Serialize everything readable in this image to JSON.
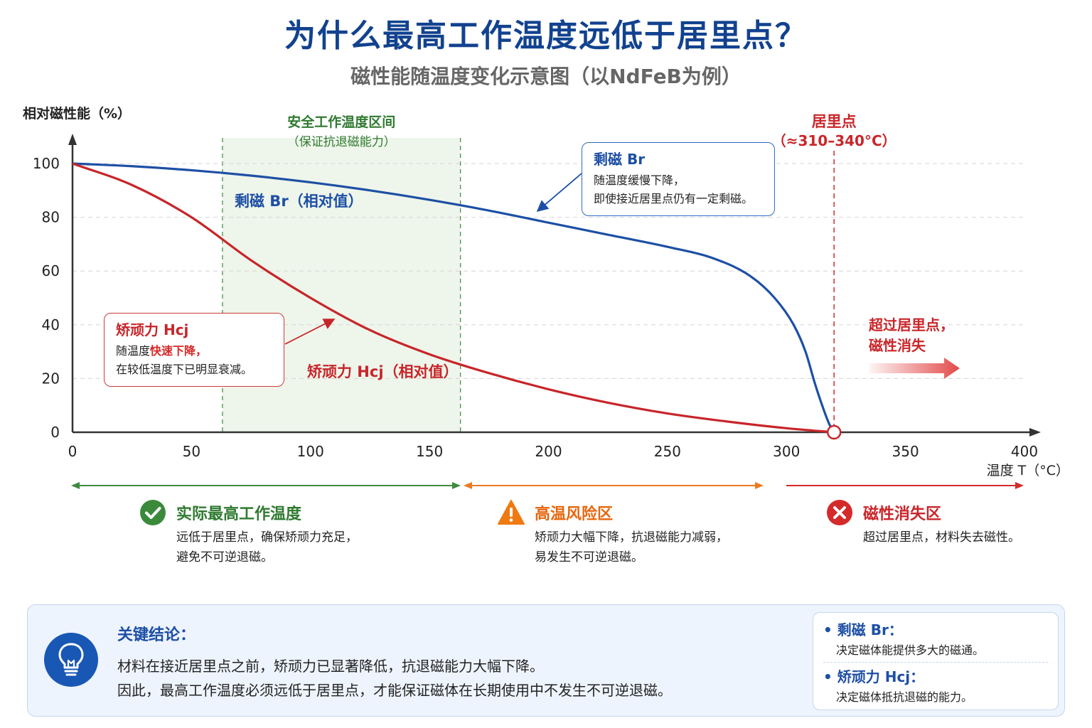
{
  "page": {
    "title": "为什么最高工作温度远低于居里点？",
    "subtitle": "磁性能随温度变化示意图（以NdFeB为例）"
  },
  "colors": {
    "br": "#1d4fa5",
    "hcj": "#c7252a",
    "safe_zone": "#2f7a30",
    "risk_zone": "#e6660e",
    "loss_zone": "#c9262a"
  },
  "chart_data": {
    "type": "line",
    "ylabel": "相对磁性能（%）",
    "xlabel": "温度 T（°C）",
    "xlim": [
      0,
      400
    ],
    "ylim": [
      0,
      100
    ],
    "xticks": [
      "0",
      "50",
      "100",
      "150",
      "200",
      "250",
      "300",
      "350",
      "400"
    ],
    "yticks": [
      "0",
      "20",
      "40",
      "60",
      "80",
      "100"
    ],
    "grid": "horizontal-dashed",
    "series": [
      {
        "name": "剩磁 Br（相对值）",
        "color": "#1d4fa5",
        "x": [
          0,
          25,
          50,
          75,
          100,
          125,
          150,
          175,
          200,
          225,
          250,
          270,
          285,
          295,
          303,
          308,
          312,
          315,
          318,
          320
        ],
        "y": [
          100,
          99,
          97.5,
          95.5,
          93,
          90,
          86.5,
          82.5,
          78,
          73.5,
          69,
          64.5,
          58,
          50,
          40,
          30,
          18,
          10,
          3,
          0
        ]
      },
      {
        "name": "矫顽力 Hcj（相对值）",
        "color": "#c7252a",
        "x": [
          0,
          25,
          50,
          75,
          100,
          125,
          150,
          175,
          200,
          225,
          250,
          275,
          300,
          320
        ],
        "y": [
          100,
          92,
          80,
          64,
          50,
          38,
          29,
          22,
          16,
          11,
          7,
          4,
          1.5,
          0
        ]
      }
    ],
    "regions": {
      "safe": {
        "x": [
          63,
          163
        ],
        "label": "安全工作温度区间",
        "sublabel": "（保证抗退磁能力）"
      },
      "curie": {
        "x": 320,
        "label": "居里点",
        "sublabel": "（≈310–340°C）"
      }
    },
    "annotations": {
      "loss": {
        "line1": "超过居里点，",
        "line2": "磁性消失"
      }
    }
  },
  "callouts": {
    "br": {
      "title": "剩磁 Br",
      "line1": "随温度缓慢下降，",
      "line2": "即使接近居里点仍有一定剩磁。"
    },
    "hcj": {
      "title": "矫顽力 Hcj",
      "line1_pre": "随温度",
      "line1_highlight": "快速下降，",
      "line2": "在较低温度下已明显衰减。"
    }
  },
  "zones": [
    {
      "title": "实际最高工作温度",
      "desc1": "远低于居里点，确保矫顽力充足，",
      "desc2": "避免不可逆退磁。",
      "icon": "check-circle-icon"
    },
    {
      "title": "高温风险区",
      "desc1": "矫顽力大幅下降，抗退磁能力减弱，",
      "desc2": "易发生不可逆退磁。",
      "icon": "warning-triangle-icon"
    },
    {
      "title": "磁性消失区",
      "desc1": "超过居里点，材料失去磁性。",
      "icon": "cross-circle-icon"
    }
  ],
  "conclusion": {
    "title": "关键结论：",
    "line1": "材料在接近居里点之前，矫顽力已显著降低，抗退磁能力大幅下降。",
    "line2": "因此，最高工作温度必须远低于居里点，才能保证磁体在长期使用中不发生不可逆退磁。",
    "icon": "lightbulb-icon",
    "notes": [
      {
        "title": "• 剩磁 Br：",
        "desc": "决定磁体能提供多大的磁通。"
      },
      {
        "title": "• 矫顽力 Hcj：",
        "desc": "决定磁体抵抗退磁的能力。"
      }
    ]
  }
}
